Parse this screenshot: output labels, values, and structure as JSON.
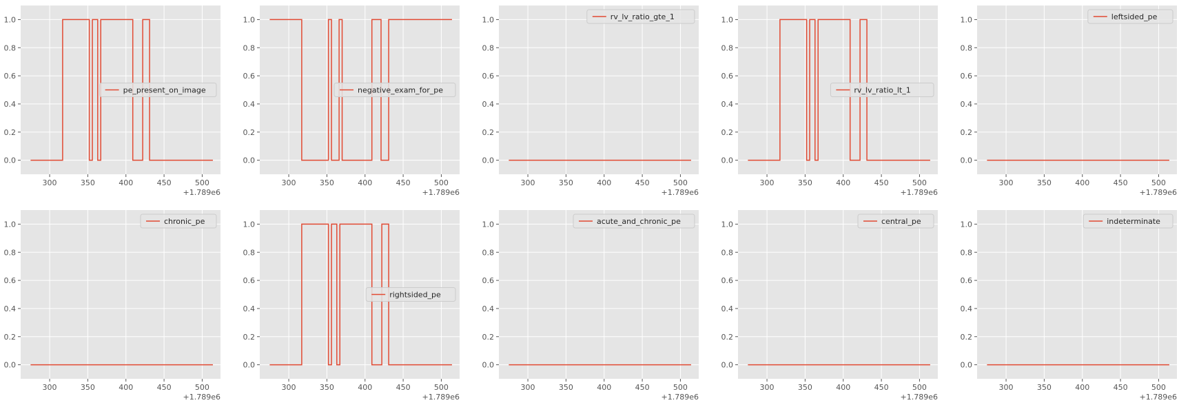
{
  "figure": {
    "style": "ggplot",
    "background": "#ffffff",
    "axes_facecolor": "#e5e5e5",
    "grid_color": "#ffffff",
    "line_color": "#e24a33",
    "legend_facecolor": "#e5e5e5",
    "legend_edgecolor": "#cccccc"
  },
  "chart_data": [
    {
      "type": "line",
      "grid": true,
      "legend_position": "center-right",
      "xlim": [
        262,
        524
      ],
      "ylim": [
        -0.1,
        1.1
      ],
      "xticks": [
        300,
        350,
        400,
        450,
        500
      ],
      "yticks": [
        "0.0",
        "0.2",
        "0.4",
        "0.6",
        "0.8",
        "1.0"
      ],
      "x_offset_label": "+1.789e6",
      "series": [
        {
          "name": "pe_present_on_image",
          "x": [
            275,
            317,
            317,
            352,
            352,
            356,
            356,
            363,
            363,
            367,
            367,
            409,
            409,
            422,
            422,
            431,
            431,
            514
          ],
          "y": [
            0,
            0,
            1,
            1,
            0,
            0,
            1,
            1,
            0,
            0,
            1,
            1,
            0,
            0,
            1,
            1,
            0,
            0
          ]
        }
      ]
    },
    {
      "type": "line",
      "grid": true,
      "legend_position": "center-right",
      "xlim": [
        262,
        524
      ],
      "ylim": [
        -0.1,
        1.1
      ],
      "xticks": [
        300,
        350,
        400,
        450,
        500
      ],
      "yticks": [
        "0.0",
        "0.2",
        "0.4",
        "0.6",
        "0.8",
        "1.0"
      ],
      "x_offset_label": "+1.789e6",
      "series": [
        {
          "name": "negative_exam_for_pe",
          "x": [
            275,
            317,
            317,
            352,
            352,
            356,
            356,
            366,
            366,
            370,
            370,
            409,
            409,
            421,
            421,
            431,
            431,
            514
          ],
          "y": [
            1,
            1,
            0,
            0,
            1,
            1,
            0,
            0,
            1,
            1,
            0,
            0,
            1,
            1,
            0,
            0,
            1,
            1
          ]
        }
      ]
    },
    {
      "type": "line",
      "grid": true,
      "legend_position": "upper-right",
      "xlim": [
        262,
        524
      ],
      "ylim": [
        -0.1,
        1.1
      ],
      "xticks": [
        300,
        350,
        400,
        450,
        500
      ],
      "yticks": [
        "0.0",
        "0.2",
        "0.4",
        "0.6",
        "0.8",
        "1.0"
      ],
      "x_offset_label": "+1.789e6",
      "series": [
        {
          "name": "rv_lv_ratio_gte_1",
          "x": [
            275,
            514
          ],
          "y": [
            0,
            0
          ]
        }
      ]
    },
    {
      "type": "line",
      "grid": true,
      "legend_position": "center-right",
      "xlim": [
        262,
        524
      ],
      "ylim": [
        -0.1,
        1.1
      ],
      "xticks": [
        300,
        350,
        400,
        450,
        500
      ],
      "yticks": [
        "0.0",
        "0.2",
        "0.4",
        "0.6",
        "0.8",
        "1.0"
      ],
      "x_offset_label": "+1.789e6",
      "series": [
        {
          "name": "rv_lv_ratio_lt_1",
          "x": [
            275,
            317,
            317,
            352,
            352,
            356,
            356,
            363,
            363,
            367,
            367,
            409,
            409,
            422,
            422,
            431,
            431,
            514
          ],
          "y": [
            0,
            0,
            1,
            1,
            0,
            0,
            1,
            1,
            0,
            0,
            1,
            1,
            0,
            0,
            1,
            1,
            0,
            0
          ]
        }
      ]
    },
    {
      "type": "line",
      "grid": true,
      "legend_position": "upper-right",
      "xlim": [
        262,
        524
      ],
      "ylim": [
        -0.1,
        1.1
      ],
      "xticks": [
        300,
        350,
        400,
        450,
        500
      ],
      "yticks": [
        "0.0",
        "0.2",
        "0.4",
        "0.6",
        "0.8",
        "1.0"
      ],
      "x_offset_label": "+1.789e6",
      "series": [
        {
          "name": "leftsided_pe",
          "x": [
            275,
            514
          ],
          "y": [
            0,
            0
          ]
        }
      ]
    },
    {
      "type": "line",
      "grid": true,
      "legend_position": "upper-right",
      "xlim": [
        262,
        524
      ],
      "ylim": [
        -0.1,
        1.1
      ],
      "xticks": [
        300,
        350,
        400,
        450,
        500
      ],
      "yticks": [
        "0.0",
        "0.2",
        "0.4",
        "0.6",
        "0.8",
        "1.0"
      ],
      "x_offset_label": "+1.789e6",
      "series": [
        {
          "name": "chronic_pe",
          "x": [
            275,
            514
          ],
          "y": [
            0,
            0
          ]
        }
      ]
    },
    {
      "type": "line",
      "grid": true,
      "legend_position": "center-right",
      "xlim": [
        262,
        524
      ],
      "ylim": [
        -0.1,
        1.1
      ],
      "xticks": [
        300,
        350,
        400,
        450,
        500
      ],
      "yticks": [
        "0.0",
        "0.2",
        "0.4",
        "0.6",
        "0.8",
        "1.0"
      ],
      "x_offset_label": "+1.789e6",
      "series": [
        {
          "name": "rightsided_pe",
          "x": [
            275,
            317,
            317,
            352,
            352,
            356,
            356,
            363,
            363,
            367,
            367,
            409,
            409,
            422,
            422,
            431,
            431,
            514
          ],
          "y": [
            0,
            0,
            1,
            1,
            0,
            0,
            1,
            1,
            0,
            0,
            1,
            1,
            0,
            0,
            1,
            1,
            0,
            0
          ]
        }
      ]
    },
    {
      "type": "line",
      "grid": true,
      "legend_position": "upper-right",
      "xlim": [
        262,
        524
      ],
      "ylim": [
        -0.1,
        1.1
      ],
      "xticks": [
        300,
        350,
        400,
        450,
        500
      ],
      "yticks": [
        "0.0",
        "0.2",
        "0.4",
        "0.6",
        "0.8",
        "1.0"
      ],
      "x_offset_label": "+1.789e6",
      "series": [
        {
          "name": "acute_and_chronic_pe",
          "x": [
            275,
            514
          ],
          "y": [
            0,
            0
          ]
        }
      ]
    },
    {
      "type": "line",
      "grid": true,
      "legend_position": "upper-right",
      "xlim": [
        262,
        524
      ],
      "ylim": [
        -0.1,
        1.1
      ],
      "xticks": [
        300,
        350,
        400,
        450,
        500
      ],
      "yticks": [
        "0.0",
        "0.2",
        "0.4",
        "0.6",
        "0.8",
        "1.0"
      ],
      "x_offset_label": "+1.789e6",
      "series": [
        {
          "name": "central_pe",
          "x": [
            275,
            514
          ],
          "y": [
            0,
            0
          ]
        }
      ]
    },
    {
      "type": "line",
      "grid": true,
      "legend_position": "upper-right",
      "xlim": [
        262,
        524
      ],
      "ylim": [
        -0.1,
        1.1
      ],
      "xticks": [
        300,
        350,
        400,
        450,
        500
      ],
      "yticks": [
        "0.0",
        "0.2",
        "0.4",
        "0.6",
        "0.8",
        "1.0"
      ],
      "x_offset_label": "+1.789e6",
      "series": [
        {
          "name": "indeterminate",
          "x": [
            275,
            514
          ],
          "y": [
            0,
            0
          ]
        }
      ]
    }
  ]
}
